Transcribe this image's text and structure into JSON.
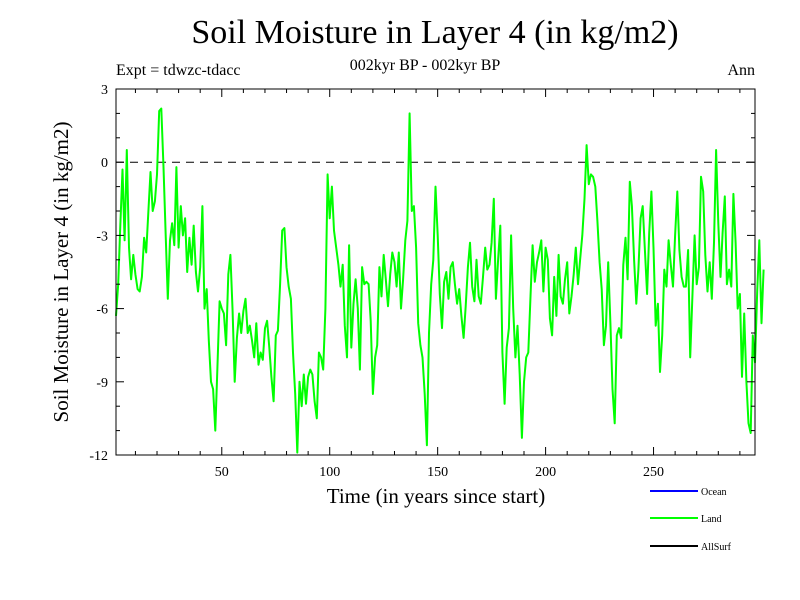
{
  "chart_data": {
    "type": "line",
    "title": "Soil Moisture in Layer 4 (in kg/m2)",
    "subtitle": "002kyr BP - 002kyr BP",
    "expt_label": "Expt = tdwzc-tdacc",
    "season_label": "Ann",
    "xlabel": "Time (in years since start)",
    "ylabel": "Soil Moisture in Layer 4 (in kg/m2)",
    "xlim": [
      1,
      297
    ],
    "ylim": [
      -12,
      3
    ],
    "x_ticks": [
      50,
      100,
      150,
      200,
      250
    ],
    "y_ticks": [
      3,
      0,
      -3,
      -6,
      -9,
      -12
    ],
    "reference_line": 0,
    "legend": [
      {
        "name": "Ocean",
        "color": "#0000ff"
      },
      {
        "name": "Land",
        "color": "#00ff00"
      },
      {
        "name": "AllSurf",
        "color": "#000000"
      }
    ],
    "series": [
      {
        "name": "Land",
        "color": "#00ff00",
        "x_start": 1,
        "x_step": 1,
        "values": [
          -6.3,
          -5.0,
          -2.6,
          -0.3,
          -3.2,
          0.5,
          -3.5,
          -4.8,
          -3.8,
          -4.6,
          -5.2,
          -5.3,
          -4.7,
          -3.1,
          -3.7,
          -2.0,
          -0.4,
          -2.0,
          -1.6,
          -0.5,
          2.1,
          2.2,
          -0.2,
          -3.0,
          -5.6,
          -3.2,
          -2.5,
          -3.4,
          -0.2,
          -3.5,
          -1.8,
          -3.0,
          -2.3,
          -4.5,
          -3.1,
          -4.2,
          -2.6,
          -4.5,
          -5.3,
          -4.3,
          -1.8,
          -6.0,
          -5.2,
          -7.3,
          -9.0,
          -9.3,
          -11.0,
          -8.3,
          -5.7,
          -6.0,
          -6.2,
          -7.5,
          -4.6,
          -3.8,
          -6.1,
          -9.0,
          -7.2,
          -6.2,
          -7.0,
          -6.1,
          -5.6,
          -7.0,
          -6.7,
          -7.3,
          -8.0,
          -6.6,
          -8.3,
          -7.8,
          -8.1,
          -6.8,
          -6.5,
          -7.6,
          -8.8,
          -9.8,
          -7.1,
          -6.9,
          -5.0,
          -2.8,
          -2.7,
          -4.3,
          -5.1,
          -5.6,
          -7.8,
          -9.5,
          -11.9,
          -9.0,
          -10.0,
          -8.7,
          -9.9,
          -8.8,
          -8.5,
          -8.7,
          -9.8,
          -10.5,
          -7.8,
          -8.0,
          -8.5,
          -6.0,
          -0.5,
          -2.3,
          -1.0,
          -2.8,
          -3.5,
          -4.2,
          -5.1,
          -4.2,
          -6.7,
          -8.0,
          -3.4,
          -7.6,
          -5.8,
          -4.8,
          -6.0,
          -8.5,
          -4.3,
          -5.0,
          -4.9,
          -5.0,
          -6.5,
          -9.5,
          -8.0,
          -7.5,
          -4.3,
          -5.5,
          -3.8,
          -4.8,
          -5.9,
          -4.6,
          -3.7,
          -4.1,
          -5.1,
          -3.7,
          -6.0,
          -4.8,
          -3.2,
          -2.4,
          2.0,
          -2.0,
          -1.8,
          -3.5,
          -6.6,
          -7.5,
          -8.0,
          -9.5,
          -11.6,
          -7.0,
          -5.0,
          -4.0,
          -1.0,
          -3.0,
          -5.4,
          -6.8,
          -4.9,
          -4.5,
          -5.6,
          -4.3,
          -4.1,
          -5.0,
          -5.8,
          -5.2,
          -6.3,
          -7.2,
          -5.9,
          -4.3,
          -3.3,
          -5.1,
          -5.7,
          -4.0,
          -5.5,
          -5.8,
          -4.7,
          -3.5,
          -4.4,
          -4.2,
          -3.3,
          -1.5,
          -5.6,
          -4.0,
          -2.6,
          -7.8,
          -9.9,
          -7.6,
          -6.8,
          -3.0,
          -6.0,
          -8.0,
          -6.7,
          -8.7,
          -11.3,
          -9.0,
          -8.0,
          -7.8,
          -5.5,
          -3.4,
          -4.9,
          -4.1,
          -3.7,
          -3.2,
          -5.3,
          -3.5,
          -4.0,
          -6.4,
          -7.1,
          -4.7,
          -6.3,
          -3.8,
          -5.5,
          -5.8,
          -4.8,
          -4.1,
          -6.2,
          -5.5,
          -4.6,
          -3.5,
          -5.0,
          -4.0,
          -3.0,
          -1.5,
          0.7,
          -0.9,
          -0.5,
          -0.6,
          -1.0,
          -2.4,
          -4.1,
          -5.2,
          -7.5,
          -6.7,
          -4.1,
          -6.6,
          -9.3,
          -10.7,
          -7.1,
          -6.8,
          -7.2,
          -4.2,
          -3.1,
          -4.8,
          -0.8,
          -1.8,
          -4.0,
          -5.8,
          -4.4,
          -2.3,
          -1.8,
          -3.6,
          -5.4,
          -2.9,
          -1.2,
          -3.5,
          -6.7,
          -5.8,
          -8.6,
          -7.1,
          -4.4,
          -5.1,
          -3.2,
          -4.2,
          -5.1,
          -3.0,
          -1.2,
          -3.6,
          -4.7,
          -5.1,
          -5.1,
          -3.6,
          -8.0,
          -5.5,
          -3.0,
          -5.0,
          -4.3,
          -0.6,
          -1.2,
          -3.8,
          -5.3,
          -4.1,
          -5.6,
          -3.3,
          0.5,
          -2.5,
          -4.7,
          -2.9,
          -1.4,
          -5.0,
          -4.4,
          -5.1,
          -1.3,
          -3.3,
          -6.0,
          -5.4,
          -8.8,
          -6.2,
          -9.0,
          -10.7,
          -11.1,
          -7.1,
          -8.2,
          -5.3,
          -3.2,
          -6.6,
          -4.4
        ]
      }
    ]
  }
}
